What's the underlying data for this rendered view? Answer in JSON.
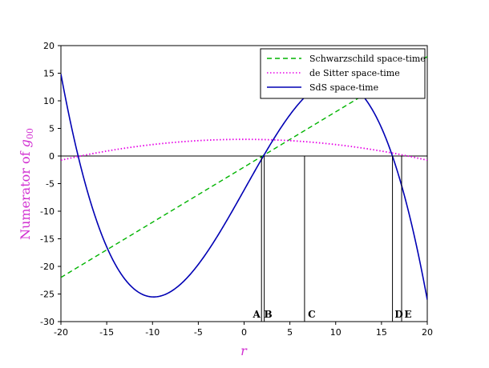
{
  "chart_data": {
    "type": "line",
    "xlabel": "r",
    "ylabel": {
      "main": "Numerator of ",
      "symbol": "g",
      "subscript": "00"
    },
    "xlim": [
      -20,
      20
    ],
    "ylim": [
      -30,
      20
    ],
    "xticks": [
      -20,
      -15,
      -10,
      -5,
      0,
      5,
      10,
      15,
      20
    ],
    "yticks": [
      20,
      15,
      10,
      5,
      0,
      -5,
      -10,
      -15,
      -20,
      -25,
      -30
    ],
    "grid": false,
    "legend_position": "top-right",
    "series": [
      {
        "name": "Schwarzschild space-time",
        "style": "dashed",
        "color": "#00b400",
        "formula": "linear",
        "x": [
          -20,
          20
        ],
        "y": [
          -22,
          18
        ]
      },
      {
        "name": "de Sitter space-time",
        "style": "dotted",
        "color": "#e600e6",
        "formula": "quadratic",
        "x": [
          -20,
          -18,
          0,
          18,
          20
        ],
        "y": [
          -0.8,
          0,
          3,
          0,
          -0.8
        ]
      },
      {
        "name": "SdS space-time",
        "style": "solid",
        "color": "#0000b4",
        "formula": "quartic",
        "x": [
          -20,
          -18,
          -10,
          2,
          12,
          16.2,
          20
        ],
        "y": [
          14.3,
          0,
          -26,
          0,
          12.3,
          0,
          -26
        ]
      }
    ],
    "zero_line": true,
    "markers": [
      {
        "label": "A",
        "x": 1.9
      },
      {
        "label": "B",
        "x": 2.2
      },
      {
        "label": "C",
        "x": 6.6
      },
      {
        "label": "D",
        "x": 16.2
      },
      {
        "label": "E",
        "x": 17.2
      }
    ]
  },
  "colors": {
    "schwarzschild": "#00b400",
    "desitter": "#e600e6",
    "sds": "#0000b4",
    "axis_label": "#d12fd1"
  }
}
